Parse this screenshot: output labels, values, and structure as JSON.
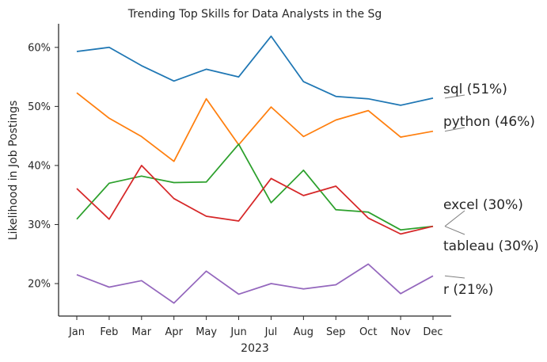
{
  "chart_data": {
    "type": "line",
    "title": "Trending Top Skills for Data Analysts in the Sg",
    "xlabel": "2023",
    "ylabel": "Likelihood in Job Postings",
    "categories": [
      "Jan",
      "Feb",
      "Mar",
      "Apr",
      "May",
      "Jun",
      "Jul",
      "Aug",
      "Sep",
      "Oct",
      "Nov",
      "Dec"
    ],
    "ylim": [
      14.5,
      64
    ],
    "yticks": [
      20,
      30,
      40,
      50,
      60
    ],
    "ytick_labels": [
      "20%",
      "30%",
      "40%",
      "50%",
      "60%"
    ],
    "grid": false,
    "legend": "none",
    "series": [
      {
        "name": "sql",
        "end_label": "sql (51%)",
        "color": "#1f77b4",
        "values": [
          59.3,
          60.0,
          56.9,
          54.3,
          56.3,
          55.0,
          61.9,
          54.2,
          51.7,
          51.3,
          50.2,
          51.4
        ]
      },
      {
        "name": "python",
        "end_label": "python (46%)",
        "color": "#ff7f0e",
        "values": [
          52.3,
          48.0,
          44.9,
          40.7,
          51.3,
          43.5,
          49.9,
          44.9,
          47.7,
          49.3,
          44.8,
          45.8
        ]
      },
      {
        "name": "excel",
        "end_label": "excel (30%)",
        "color": "#2ca02c",
        "values": [
          30.9,
          37.0,
          38.2,
          37.1,
          37.2,
          43.6,
          33.7,
          39.2,
          32.5,
          32.1,
          29.1,
          29.7
        ]
      },
      {
        "name": "tableau",
        "end_label": "tableau (30%)",
        "color": "#d62728",
        "values": [
          36.1,
          30.9,
          40.0,
          34.4,
          31.4,
          30.6,
          37.8,
          34.9,
          36.5,
          31.1,
          28.4,
          29.7
        ]
      },
      {
        "name": "r",
        "end_label": "r (21%)",
        "color": "#9467bd",
        "values": [
          21.5,
          19.4,
          20.5,
          16.7,
          22.1,
          18.2,
          20.0,
          19.1,
          19.8,
          23.3,
          18.3,
          21.3
        ]
      }
    ]
  }
}
